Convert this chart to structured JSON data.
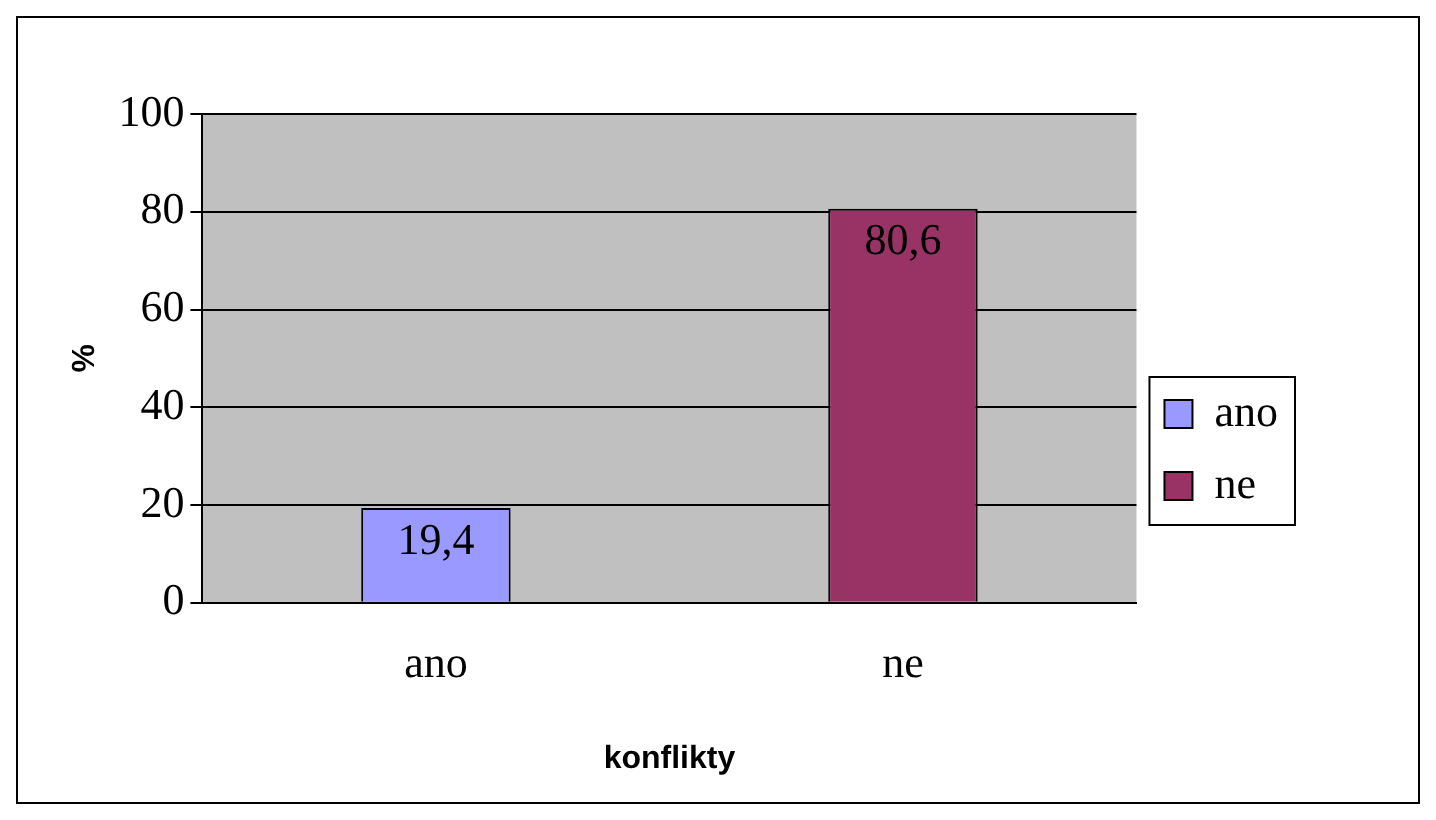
{
  "chart_data": {
    "type": "bar",
    "xlabel": "konflikty",
    "ylabel": "%",
    "categories": [
      "ano",
      "ne"
    ],
    "series": [
      {
        "name": "ano",
        "color": "#9999ff",
        "values": [
          19.4,
          null
        ],
        "value_labels": [
          "19,4",
          null
        ]
      },
      {
        "name": "ne",
        "color": "#993366",
        "values": [
          null,
          80.6
        ],
        "value_labels": [
          null,
          "80,6"
        ]
      }
    ],
    "ylim": [
      0,
      100
    ],
    "yticks": [
      0,
      20,
      40,
      60,
      80,
      100
    ],
    "grid": "y",
    "legend": "right"
  }
}
